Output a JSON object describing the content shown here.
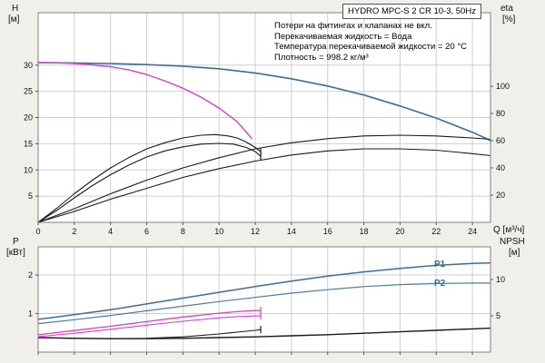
{
  "background": "#f0efe9",
  "title_box": {
    "label": "HYDRO MPC-S 2 CR 10-3, 50Hz"
  },
  "notes": {
    "line1": "Потери на фитингах и клапанах не вкл.",
    "line2": "Перекачиваемая жидкость = Вода",
    "line3": "Температура перекачиваемой жидкости = 20 °C",
    "line4": "Плотность = 998.2 кг/м³"
  },
  "axis_labels": {
    "h": "H",
    "h_unit": "[м]",
    "eta": "eta",
    "eta_unit": "[%]",
    "q_unit": "Q [м³/ч]",
    "p": "P",
    "p_unit": "[кВт]",
    "npsh": "NPSH",
    "npsh_unit": "[м]"
  },
  "series_labels": {
    "p1": "P1",
    "p2": "P2"
  },
  "colors": {
    "blue": "#3a6e9e",
    "magenta": "#d940cc",
    "black": "#1a1a1a",
    "grid": "#cfcfcf",
    "border": "#808080"
  },
  "chart_data": [
    {
      "type": "line",
      "panel": "top",
      "title": "HYDRO MPC-S 2 CR 10-3, 50Hz",
      "xlabel": "Q [м³/ч]",
      "ylabel_left": "H [м]",
      "ylabel_right": "eta [%]",
      "xlim": [
        0,
        25
      ],
      "ylim_left": [
        0,
        40
      ],
      "ylim_right": [
        0,
        154
      ],
      "x_ticks": [
        0,
        2,
        4,
        6,
        8,
        10,
        12,
        14,
        16,
        18,
        20,
        22,
        24
      ],
      "x_tick_labels": true,
      "y_ticks_left": [
        5,
        10,
        15,
        20,
        25,
        30
      ],
      "y_ticks_right": [
        20,
        40,
        60,
        80,
        100
      ],
      "grid": true,
      "series": [
        {
          "id": "qh-two-pumps",
          "name": "QH 2 pumps",
          "color": "#3a6e9e",
          "axis": "left",
          "width": 1.6,
          "end_tick": false,
          "points": [
            [
              0,
              30.5
            ],
            [
              2,
              30.4
            ],
            [
              4,
              30.3
            ],
            [
              6,
              30.1
            ],
            [
              8,
              29.8
            ],
            [
              10,
              29.3
            ],
            [
              12,
              28.5
            ],
            [
              14,
              27.4
            ],
            [
              16,
              26.0
            ],
            [
              18,
              24.3
            ],
            [
              20,
              22.2
            ],
            [
              22,
              19.9
            ],
            [
              24,
              17.2
            ],
            [
              25,
              15.6
            ]
          ]
        },
        {
          "id": "qh-one-pump",
          "name": "QH 1 pump",
          "color": "#d940cc",
          "axis": "left",
          "width": 1.4,
          "end_tick": false,
          "points": [
            [
              0,
              30.5
            ],
            [
              1,
              30.45
            ],
            [
              2,
              30.3
            ],
            [
              3,
              30.05
            ],
            [
              4,
              29.7
            ],
            [
              5,
              29.1
            ],
            [
              6,
              28.2
            ],
            [
              7,
              27.0
            ],
            [
              8,
              25.6
            ],
            [
              9,
              23.9
            ],
            [
              10,
              21.8
            ],
            [
              11,
              19.2
            ],
            [
              11.8,
              16.0
            ]
          ]
        },
        {
          "id": "eta-one-pump-a",
          "name": "eta 1 pump A",
          "color": "#1a1a1a",
          "axis": "right",
          "width": 1.1,
          "end_tick": true,
          "points": [
            [
              0,
              0
            ],
            [
              1,
              10
            ],
            [
              2,
              21
            ],
            [
              3,
              31
            ],
            [
              4,
              40
            ],
            [
              5,
              47.5
            ],
            [
              6,
              54
            ],
            [
              7,
              58.5
            ],
            [
              8,
              62
            ],
            [
              9,
              64
            ],
            [
              9.8,
              64.5
            ],
            [
              10.5,
              63.5
            ],
            [
              11,
              62
            ],
            [
              11.5,
              59
            ],
            [
              12,
              55
            ],
            [
              12.3,
              52
            ]
          ]
        },
        {
          "id": "eta-one-pump-b",
          "name": "eta 1 pump B",
          "color": "#1a1a1a",
          "axis": "right",
          "width": 1.1,
          "end_tick": true,
          "points": [
            [
              0,
              0
            ],
            [
              1,
              8.5
            ],
            [
              2,
              18
            ],
            [
              3,
              27
            ],
            [
              4,
              35
            ],
            [
              5,
              42
            ],
            [
              6,
              48
            ],
            [
              7,
              52.5
            ],
            [
              8,
              55.5
            ],
            [
              9,
              57.5
            ],
            [
              10,
              58
            ],
            [
              10.8,
              57.5
            ],
            [
              11.5,
              55
            ],
            [
              12,
              52
            ],
            [
              12.3,
              48.5
            ]
          ]
        },
        {
          "id": "eta-two-pumps-a",
          "name": "eta 2 pumps A",
          "color": "#1a1a1a",
          "axis": "right",
          "width": 1.1,
          "end_tick": false,
          "points": [
            [
              0,
              0
            ],
            [
              2,
              10
            ],
            [
              4,
              21
            ],
            [
              6,
              31
            ],
            [
              8,
              40
            ],
            [
              10,
              47.5
            ],
            [
              12,
              54
            ],
            [
              14,
              58.5
            ],
            [
              16,
              61.5
            ],
            [
              18,
              63.5
            ],
            [
              20,
              64
            ],
            [
              22,
              63.5
            ],
            [
              24,
              62
            ],
            [
              25,
              61
            ]
          ]
        },
        {
          "id": "eta-two-pumps-b",
          "name": "eta 2 pumps B",
          "color": "#1a1a1a",
          "axis": "right",
          "width": 1.1,
          "end_tick": false,
          "points": [
            [
              0,
              0
            ],
            [
              2,
              8
            ],
            [
              4,
              17
            ],
            [
              6,
              25
            ],
            [
              8,
              33
            ],
            [
              10,
              39.5
            ],
            [
              12,
              45
            ],
            [
              14,
              49.5
            ],
            [
              16,
              52.5
            ],
            [
              18,
              54
            ],
            [
              20,
              54
            ],
            [
              22,
              53
            ],
            [
              24,
              50.5
            ],
            [
              25,
              49
            ]
          ]
        }
      ]
    },
    {
      "type": "line",
      "panel": "bottom",
      "xlabel": "",
      "ylabel_left": "P [кВт]",
      "ylabel_right": "NPSH [м]",
      "xlim": [
        0,
        25
      ],
      "ylim_left": [
        0,
        2.73
      ],
      "ylim_right": [
        0,
        14.5
      ],
      "x_ticks": [
        0,
        2,
        4,
        6,
        8,
        10,
        12,
        14,
        16,
        18,
        20,
        22,
        24
      ],
      "x_tick_labels": false,
      "y_ticks_left": [
        1,
        2
      ],
      "y_ticks_right": [
        5,
        10
      ],
      "grid": true,
      "series": [
        {
          "id": "p1-two-pumps",
          "name": "P1",
          "color": "#3a6e9e",
          "axis": "left",
          "width": 1.5,
          "end_tick": false,
          "points": [
            [
              0,
              0.85
            ],
            [
              2,
              0.97
            ],
            [
              4,
              1.1
            ],
            [
              6,
              1.25
            ],
            [
              8,
              1.4
            ],
            [
              10,
              1.55
            ],
            [
              12,
              1.7
            ],
            [
              14,
              1.84
            ],
            [
              16,
              1.97
            ],
            [
              18,
              2.08
            ],
            [
              20,
              2.17
            ],
            [
              22,
              2.25
            ],
            [
              24,
              2.3
            ],
            [
              25,
              2.31
            ]
          ]
        },
        {
          "id": "p2-two-pumps",
          "name": "P2",
          "color": "#4a7ba8",
          "axis": "left",
          "width": 1.2,
          "end_tick": false,
          "points": [
            [
              0,
              0.74
            ],
            [
              2,
              0.84
            ],
            [
              4,
              0.95
            ],
            [
              6,
              1.07
            ],
            [
              8,
              1.19
            ],
            [
              10,
              1.31
            ],
            [
              12,
              1.42
            ],
            [
              14,
              1.53
            ],
            [
              16,
              1.62
            ],
            [
              18,
              1.7
            ],
            [
              20,
              1.75
            ],
            [
              22,
              1.78
            ],
            [
              24,
              1.79
            ],
            [
              25,
              1.79
            ]
          ]
        },
        {
          "id": "p1-one-pump",
          "name": "P1 1 pump",
          "color": "#d940cc",
          "axis": "left",
          "width": 1.3,
          "end_tick": true,
          "points": [
            [
              0,
              0.45
            ],
            [
              2,
              0.56
            ],
            [
              4,
              0.67
            ],
            [
              6,
              0.79
            ],
            [
              8,
              0.91
            ],
            [
              10,
              1.01
            ],
            [
              11,
              1.05
            ],
            [
              12,
              1.08
            ],
            [
              12.3,
              1.08
            ]
          ]
        },
        {
          "id": "p2-one-pump",
          "name": "P2 1 pump",
          "color": "#d940cc",
          "axis": "left",
          "width": 1.1,
          "end_tick": true,
          "points": [
            [
              0,
              0.4
            ],
            [
              2,
              0.49
            ],
            [
              4,
              0.59
            ],
            [
              6,
              0.7
            ],
            [
              8,
              0.8
            ],
            [
              10,
              0.89
            ],
            [
              11,
              0.92
            ],
            [
              12,
              0.94
            ],
            [
              12.3,
              0.94
            ]
          ]
        },
        {
          "id": "npsh-two-pumps",
          "name": "NPSH 2 pumps",
          "color": "#1a1a1a",
          "axis": "right",
          "width": 1.4,
          "end_tick": false,
          "points": [
            [
              0,
              2.0
            ],
            [
              2,
              1.9
            ],
            [
              4,
              1.85
            ],
            [
              6,
              1.85
            ],
            [
              8,
              1.9
            ],
            [
              10,
              2.0
            ],
            [
              12,
              2.1
            ],
            [
              14,
              2.25
            ],
            [
              16,
              2.4
            ],
            [
              18,
              2.6
            ],
            [
              20,
              2.8
            ],
            [
              22,
              3.0
            ],
            [
              24,
              3.2
            ],
            [
              25,
              3.3
            ]
          ]
        },
        {
          "id": "npsh-one-pump",
          "name": "NPSH 1 pump",
          "color": "#1a1a1a",
          "axis": "right",
          "width": 1.1,
          "end_tick": true,
          "points": [
            [
              0,
              2.0
            ],
            [
              2,
              1.9
            ],
            [
              4,
              1.85
            ],
            [
              6,
              1.9
            ],
            [
              8,
              2.1
            ],
            [
              10,
              2.5
            ],
            [
              11,
              2.75
            ],
            [
              12,
              3.0
            ],
            [
              12.3,
              3.1
            ]
          ]
        }
      ]
    }
  ]
}
